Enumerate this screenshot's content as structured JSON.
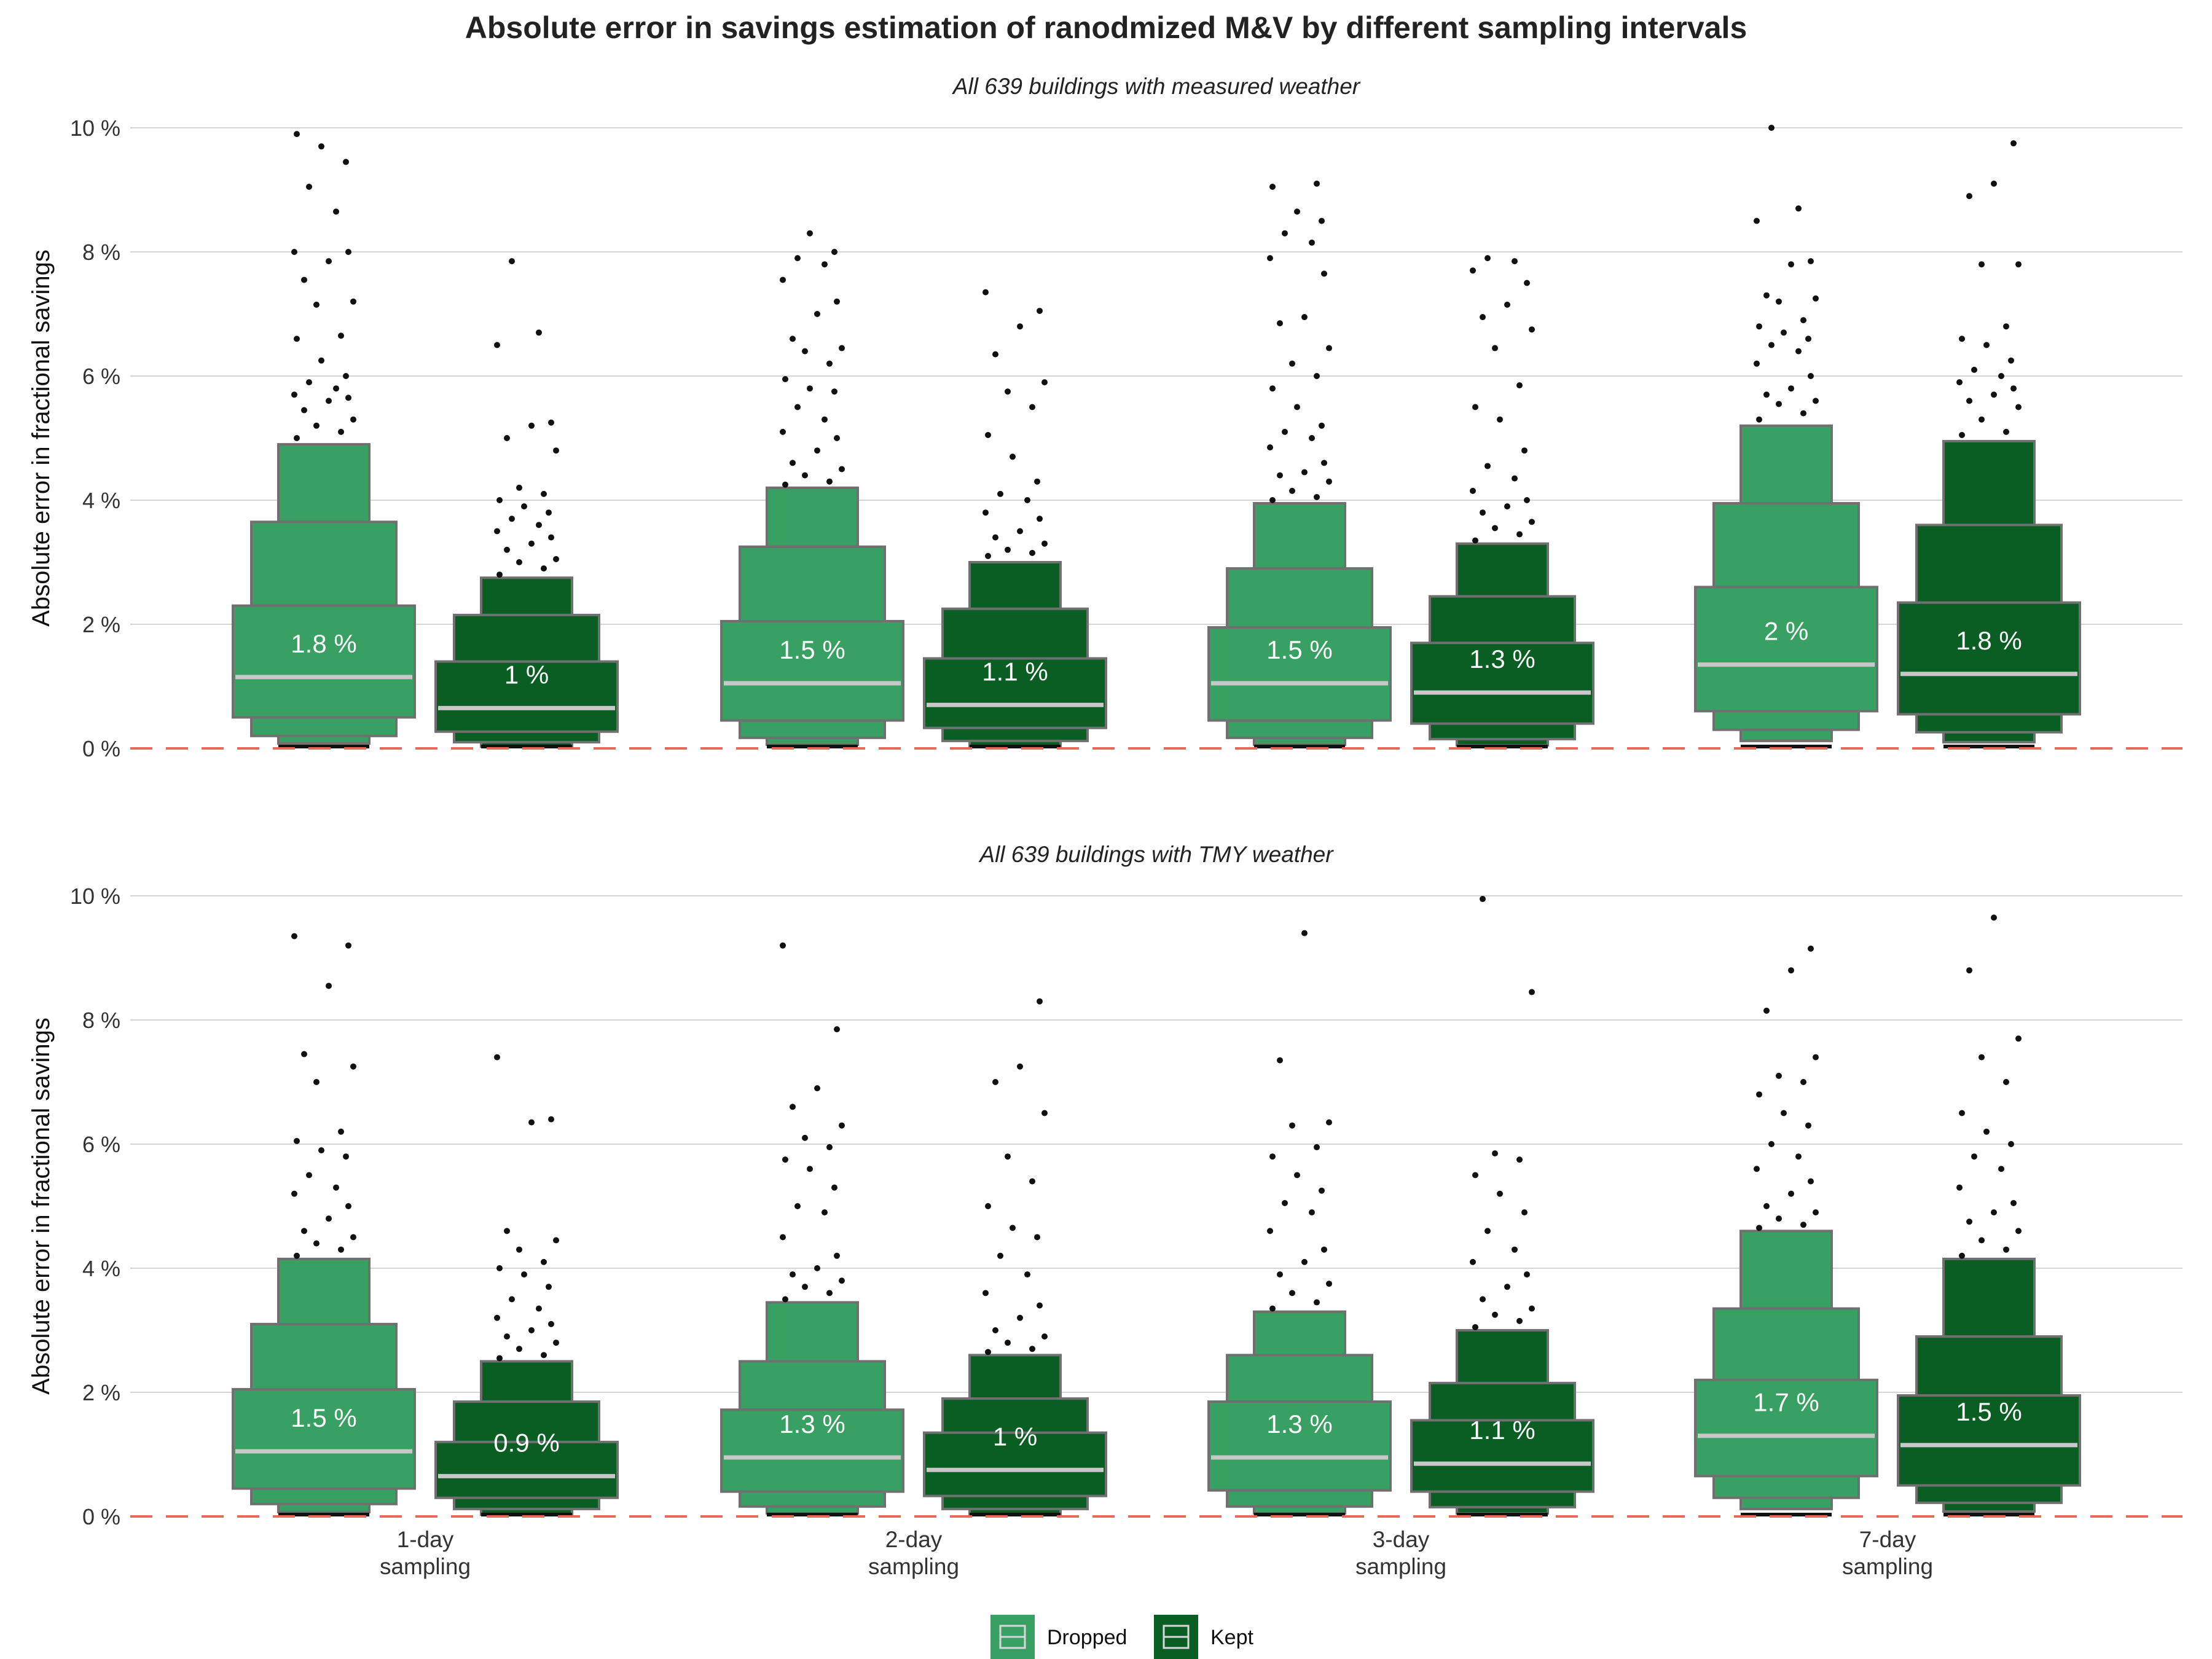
{
  "title": "Absolute error in savings estimation of ranodmized M&V by different sampling intervals",
  "legend": [
    {
      "name": "Dropped",
      "color": "#38a062"
    },
    {
      "name": "Kept",
      "color": "#0a5e24"
    }
  ],
  "colors": {
    "dropped": "#38a062",
    "kept": "#0a5e24",
    "box_outline": "#707070",
    "median_line": "#c8c8c8",
    "reference_line": "#e8695a",
    "grid": "#d4d4d4"
  },
  "chart_data": [
    {
      "type": "boxen",
      "subtitle": "All 639 buildings with measured weather",
      "ylabel": "Absolute error in fractional savings",
      "ylim": [
        0,
        10
      ],
      "yticks": [
        "0 %",
        "2 %",
        "4 %",
        "6 %",
        "8 %",
        "10 %"
      ],
      "y_unit": "%",
      "reference_line": 0,
      "categories": [
        "1-day\nsampling",
        "2-day\nsampling",
        "3-day\nsampling",
        "7-day\nsampling"
      ],
      "series": [
        {
          "name": "Dropped",
          "groups": [
            {
              "median": 1.15,
              "label": "1.8 %",
              "levels": [
                [
                  0.5,
                  2.3
                ],
                [
                  0.2,
                  3.65
                ],
                [
                  0.08,
                  4.9
                ]
              ],
              "outliers": [
                5.0,
                5.1,
                5.2,
                5.3,
                5.45,
                5.6,
                5.65,
                5.7,
                5.8,
                5.9,
                6.0,
                6.25,
                6.6,
                6.65,
                7.15,
                7.2,
                7.55,
                7.85,
                8.0,
                8.0,
                8.65,
                9.05,
                9.45,
                9.7,
                9.9
              ]
            },
            {
              "median": 1.05,
              "label": "1.5 %",
              "levels": [
                [
                  0.45,
                  2.05
                ],
                [
                  0.17,
                  3.25
                ],
                [
                  0.06,
                  4.2
                ]
              ],
              "outliers": [
                4.25,
                4.3,
                4.4,
                4.5,
                4.6,
                4.8,
                5.0,
                5.1,
                5.3,
                5.5,
                5.75,
                5.8,
                5.95,
                6.2,
                6.4,
                6.45,
                6.6,
                7.0,
                7.2,
                7.55,
                7.8,
                7.9,
                8.0,
                8.3
              ]
            },
            {
              "median": 1.05,
              "label": "1.5 %",
              "levels": [
                [
                  0.45,
                  1.95
                ],
                [
                  0.17,
                  2.9
                ],
                [
                  0.06,
                  3.95
                ]
              ],
              "outliers": [
                4.0,
                4.05,
                4.15,
                4.3,
                4.4,
                4.45,
                4.6,
                4.85,
                5.0,
                5.1,
                5.2,
                5.5,
                5.8,
                6.0,
                6.2,
                6.45,
                6.85,
                6.95,
                7.65,
                7.9,
                8.15,
                8.3,
                8.5,
                8.65,
                9.05,
                9.1
              ]
            },
            {
              "median": 1.35,
              "label": "2 %",
              "levels": [
                [
                  0.6,
                  2.6
                ],
                [
                  0.3,
                  3.95
                ],
                [
                  0.12,
                  5.2
                ]
              ],
              "outliers": [
                5.3,
                5.4,
                5.55,
                5.6,
                5.7,
                5.8,
                6.0,
                6.2,
                6.4,
                6.5,
                6.6,
                6.7,
                6.8,
                6.9,
                7.2,
                7.25,
                7.3,
                7.8,
                7.85,
                8.5,
                8.7,
                10.0
              ]
            }
          ]
        },
        {
          "name": "Kept",
          "groups": [
            {
              "median": 0.65,
              "label": "1 %",
              "levels": [
                [
                  0.27,
                  1.4
                ],
                [
                  0.1,
                  2.15
                ],
                [
                  0.03,
                  2.75
                ]
              ],
              "outliers": [
                2.8,
                2.9,
                3.0,
                3.05,
                3.2,
                3.3,
                3.4,
                3.5,
                3.6,
                3.7,
                3.8,
                3.9,
                4.0,
                4.1,
                4.2,
                4.8,
                5.0,
                5.2,
                5.25,
                6.5,
                6.7,
                7.85
              ]
            },
            {
              "median": 0.7,
              "label": "1.1 %",
              "levels": [
                [
                  0.33,
                  1.45
                ],
                [
                  0.12,
                  2.25
                ],
                [
                  0.04,
                  3.0
                ]
              ],
              "outliers": [
                3.1,
                3.15,
                3.2,
                3.3,
                3.4,
                3.5,
                3.7,
                3.8,
                4.0,
                4.1,
                4.3,
                4.7,
                5.05,
                5.5,
                5.75,
                5.9,
                6.35,
                6.8,
                7.05,
                7.35
              ]
            },
            {
              "median": 0.9,
              "label": "1.3 %",
              "levels": [
                [
                  0.4,
                  1.7
                ],
                [
                  0.15,
                  2.45
                ],
                [
                  0.05,
                  3.3
                ]
              ],
              "outliers": [
                3.35,
                3.45,
                3.55,
                3.65,
                3.8,
                3.9,
                4.0,
                4.15,
                4.35,
                4.55,
                4.8,
                5.3,
                5.5,
                5.85,
                6.45,
                6.75,
                6.95,
                7.15,
                7.5,
                7.7,
                7.85,
                7.9
              ]
            },
            {
              "median": 1.2,
              "label": "1.8 %",
              "levels": [
                [
                  0.55,
                  2.35
                ],
                [
                  0.26,
                  3.6
                ],
                [
                  0.1,
                  4.95
                ]
              ],
              "outliers": [
                5.05,
                5.1,
                5.3,
                5.5,
                5.6,
                5.7,
                5.8,
                5.9,
                6.0,
                6.1,
                6.25,
                6.5,
                6.6,
                6.8,
                7.8,
                7.8,
                8.9,
                9.1,
                9.75
              ]
            }
          ]
        }
      ]
    },
    {
      "type": "boxen",
      "subtitle": "All 639 buildings with TMY weather",
      "ylabel": "Absolute error in fractional savings",
      "ylim": [
        0,
        10
      ],
      "yticks": [
        "0 %",
        "2 %",
        "4 %",
        "6 %",
        "8 %",
        "10 %"
      ],
      "y_unit": "%",
      "reference_line": 0,
      "categories": [
        "1-day\nsampling",
        "2-day\nsampling",
        "3-day\nsampling",
        "7-day\nsampling"
      ],
      "series": [
        {
          "name": "Dropped",
          "groups": [
            {
              "median": 1.05,
              "label": "1.5 %",
              "levels": [
                [
                  0.45,
                  2.05
                ],
                [
                  0.2,
                  3.1
                ],
                [
                  0.07,
                  4.15
                ]
              ],
              "outliers": [
                4.2,
                4.3,
                4.4,
                4.5,
                4.6,
                4.8,
                5.0,
                5.2,
                5.3,
                5.5,
                5.8,
                5.9,
                6.05,
                6.2,
                7.0,
                7.25,
                7.45,
                8.55,
                9.2,
                9.35
              ]
            },
            {
              "median": 0.95,
              "label": "1.3 %",
              "levels": [
                [
                  0.4,
                  1.72
                ],
                [
                  0.16,
                  2.5
                ],
                [
                  0.05,
                  3.45
                ]
              ],
              "outliers": [
                3.5,
                3.6,
                3.7,
                3.8,
                3.9,
                4.0,
                4.2,
                4.5,
                4.9,
                5.0,
                5.3,
                5.6,
                5.75,
                5.95,
                6.1,
                6.3,
                6.6,
                6.9,
                7.85,
                9.2
              ]
            },
            {
              "median": 0.95,
              "label": "1.3 %",
              "levels": [
                [
                  0.42,
                  1.85
                ],
                [
                  0.16,
                  2.6
                ],
                [
                  0.05,
                  3.3
                ]
              ],
              "outliers": [
                3.35,
                3.45,
                3.6,
                3.75,
                3.9,
                4.1,
                4.3,
                4.6,
                4.9,
                5.05,
                5.25,
                5.5,
                5.8,
                5.95,
                6.3,
                6.35,
                7.35,
                9.4
              ]
            },
            {
              "median": 1.3,
              "label": "1.7 %",
              "levels": [
                [
                  0.65,
                  2.2
                ],
                [
                  0.3,
                  3.35
                ],
                [
                  0.12,
                  4.6
                ]
              ],
              "outliers": [
                4.65,
                4.7,
                4.8,
                4.9,
                5.0,
                5.2,
                5.4,
                5.6,
                5.8,
                6.0,
                6.3,
                6.5,
                6.8,
                7.0,
                7.1,
                7.4,
                8.15,
                8.8,
                9.15
              ]
            }
          ]
        },
        {
          "name": "Kept",
          "groups": [
            {
              "median": 0.65,
              "label": "0.9 %",
              "levels": [
                [
                  0.3,
                  1.2
                ],
                [
                  0.12,
                  1.85
                ],
                [
                  0.03,
                  2.5
                ]
              ],
              "outliers": [
                2.55,
                2.6,
                2.7,
                2.8,
                2.9,
                3.0,
                3.1,
                3.2,
                3.35,
                3.5,
                3.7,
                3.9,
                4.0,
                4.1,
                4.3,
                4.45,
                4.6,
                6.35,
                6.4,
                7.4
              ]
            },
            {
              "median": 0.75,
              "label": "1 %",
              "levels": [
                [
                  0.33,
                  1.35
                ],
                [
                  0.12,
                  1.9
                ],
                [
                  0.04,
                  2.6
                ]
              ],
              "outliers": [
                2.65,
                2.7,
                2.8,
                2.9,
                3.0,
                3.2,
                3.4,
                3.6,
                3.9,
                4.2,
                4.5,
                4.65,
                5.0,
                5.4,
                5.8,
                6.5,
                7.0,
                7.25,
                8.3
              ]
            },
            {
              "median": 0.85,
              "label": "1.1 %",
              "levels": [
                [
                  0.4,
                  1.55
                ],
                [
                  0.15,
                  2.15
                ],
                [
                  0.05,
                  3.0
                ]
              ],
              "outliers": [
                3.05,
                3.15,
                3.25,
                3.35,
                3.5,
                3.7,
                3.9,
                4.1,
                4.3,
                4.6,
                4.9,
                5.2,
                5.5,
                5.75,
                5.85,
                8.45,
                9.95
              ]
            },
            {
              "median": 1.15,
              "label": "1.5 %",
              "levels": [
                [
                  0.5,
                  1.95
                ],
                [
                  0.22,
                  2.9
                ],
                [
                  0.08,
                  4.15
                ]
              ],
              "outliers": [
                4.2,
                4.3,
                4.45,
                4.6,
                4.75,
                4.9,
                5.05,
                5.3,
                5.6,
                5.8,
                6.0,
                6.2,
                6.5,
                7.0,
                7.4,
                7.7,
                8.8,
                9.65
              ]
            }
          ]
        }
      ]
    }
  ]
}
